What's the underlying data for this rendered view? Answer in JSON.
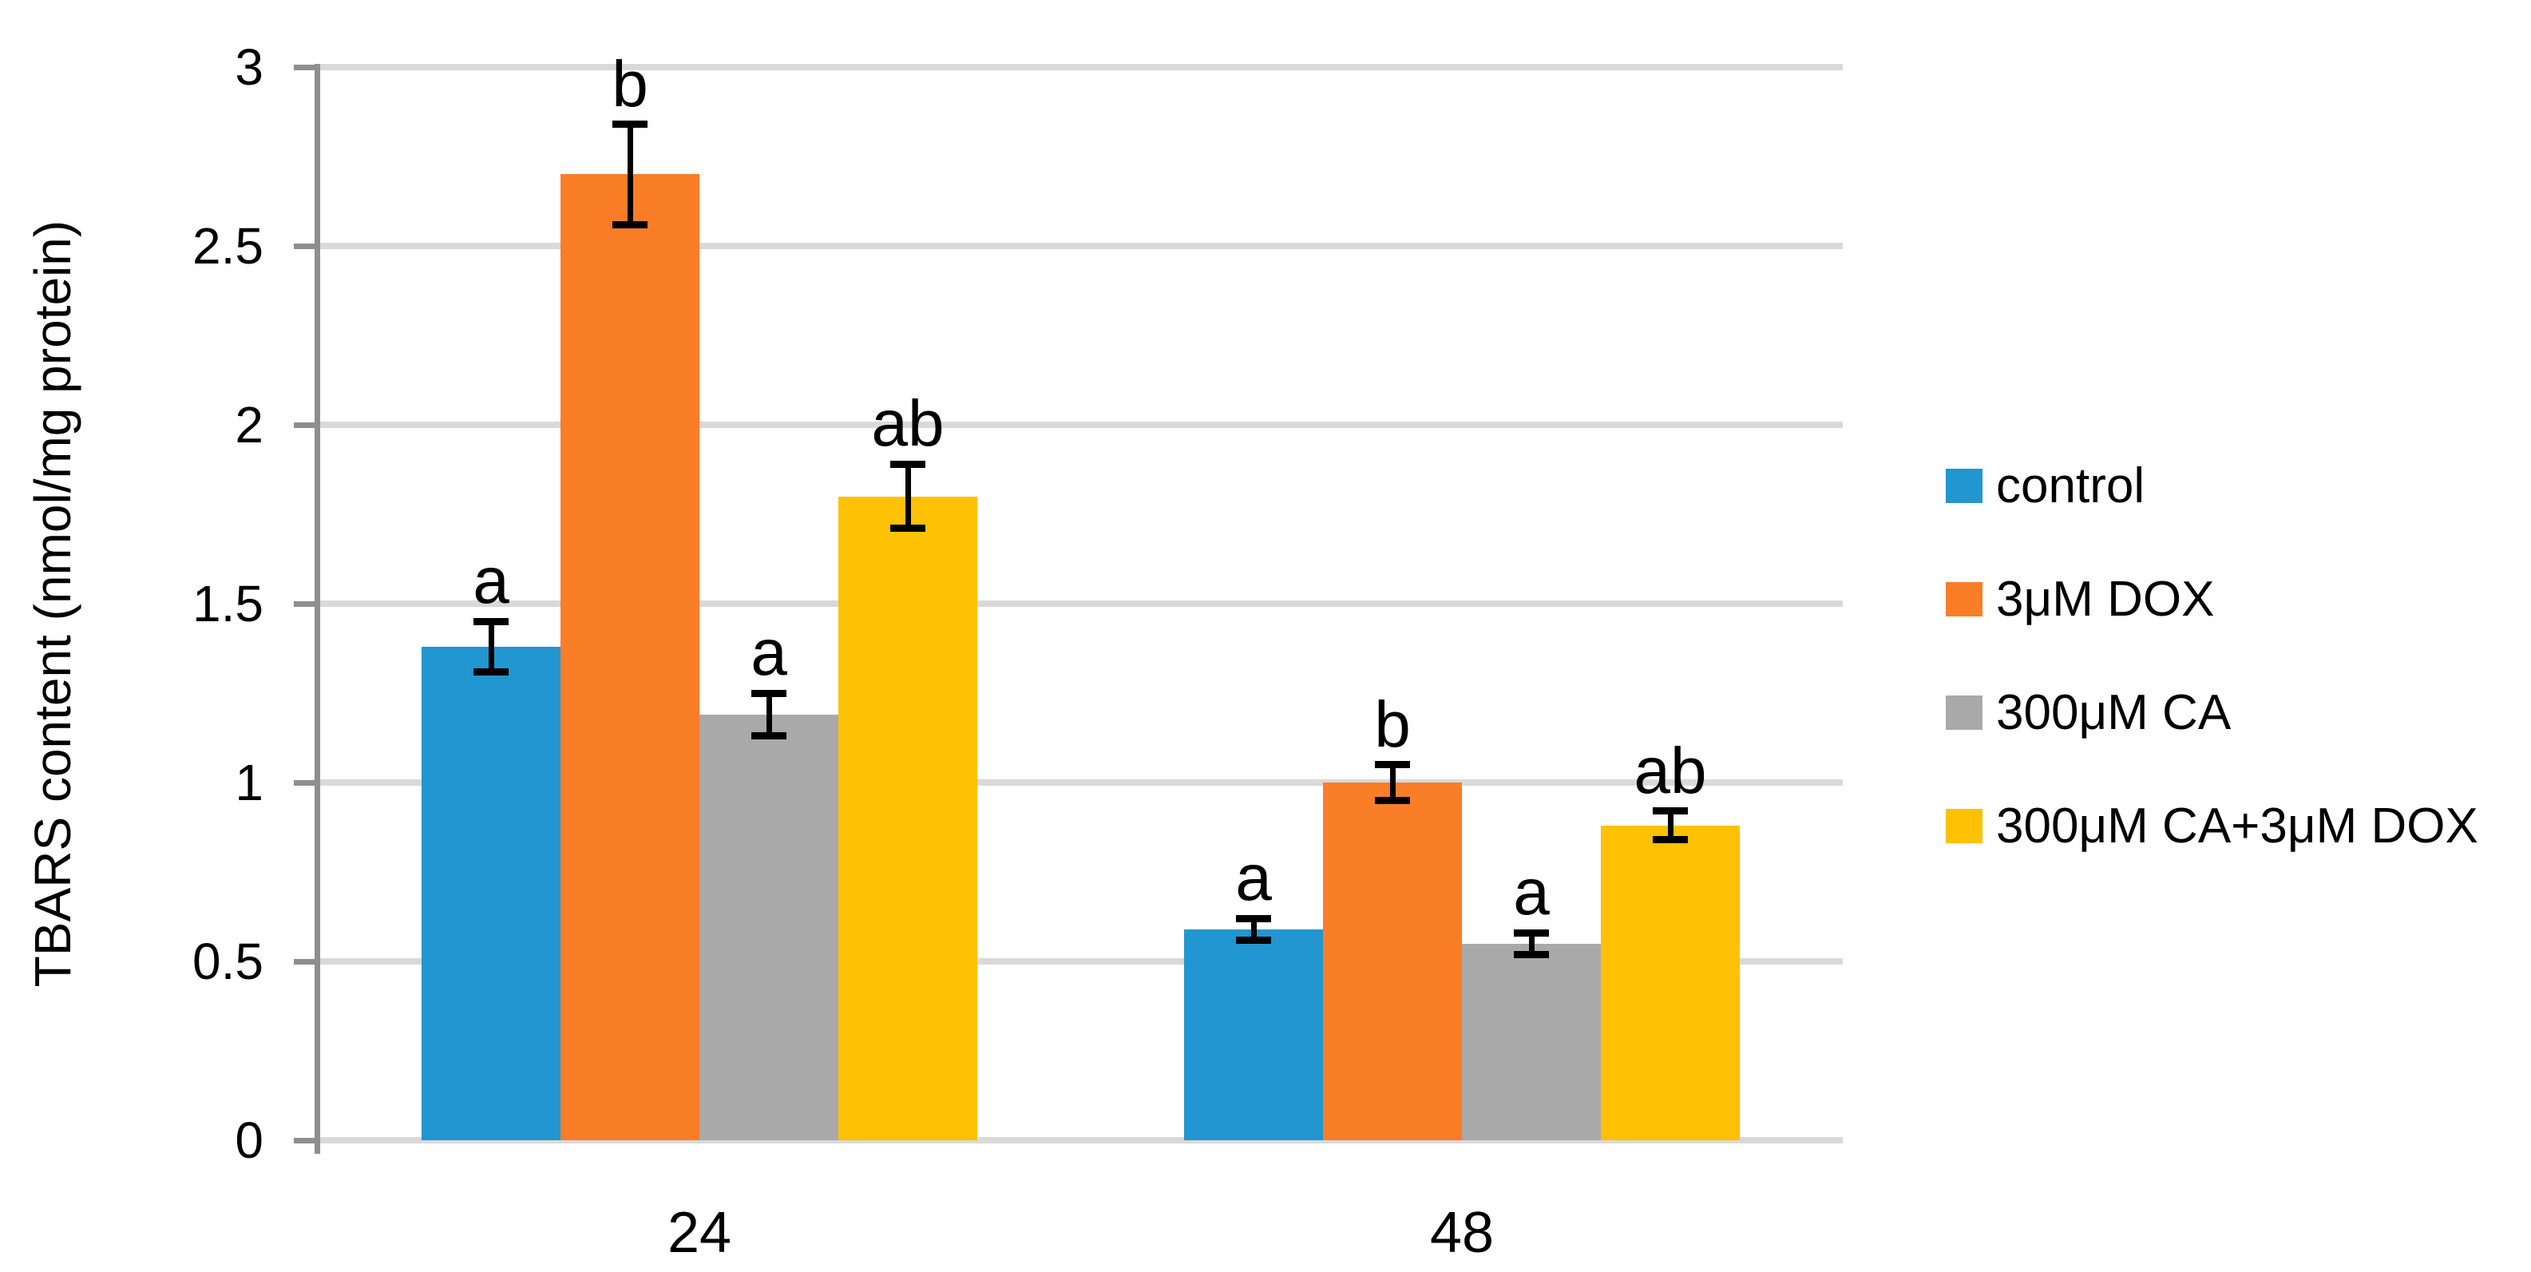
{
  "chart_data": {
    "type": "bar",
    "title": "",
    "xlabel": "",
    "ylabel": "TBARS content (nmol/mg protein)",
    "categories": [
      "24",
      "48"
    ],
    "series": [
      {
        "name": "control",
        "color": "#2196D0",
        "values": [
          1.38,
          0.59
        ],
        "errors": [
          0.07,
          0.03
        ],
        "sig_labels": [
          "a",
          "a"
        ]
      },
      {
        "name": "3μM DOX",
        "color": "#FA7D28",
        "values": [
          2.7,
          1.0
        ],
        "errors": [
          0.14,
          0.05
        ],
        "sig_labels": [
          "b",
          "b"
        ]
      },
      {
        "name": "300μM CA",
        "color": "#A9A9A9",
        "values": [
          1.19,
          0.55
        ],
        "errors": [
          0.06,
          0.03
        ],
        "sig_labels": [
          "a",
          "a"
        ]
      },
      {
        "name": "300μM CA+3μM DOX",
        "color": "#FFC103",
        "values": [
          1.8,
          0.88
        ],
        "errors": [
          0.09,
          0.04
        ],
        "sig_labels": [
          "ab",
          "ab"
        ]
      }
    ],
    "ylim": [
      0,
      3
    ],
    "ytick_step": 0.5,
    "yticks": [
      "0",
      "0.5",
      "1",
      "1.5",
      "2",
      "2.5",
      "3"
    ],
    "grid": true,
    "gridline_color": "#D9D9D9",
    "axis_color": "#8E8E8E",
    "error_bar_color": "#000000",
    "text_color": "#000000",
    "legend_position": "right"
  }
}
